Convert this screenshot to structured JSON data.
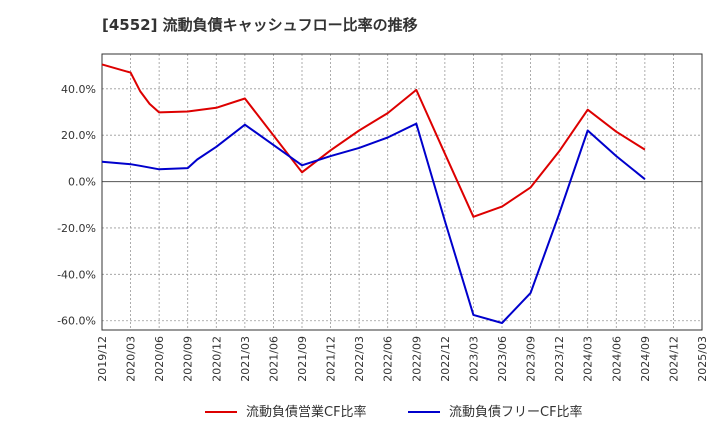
{
  "chart_data": {
    "type": "line",
    "title": "[4552]  流動負債キャッシュフロー比率の推移",
    "xlabel": "",
    "ylabel": "",
    "x_ticks": [
      "2019/12",
      "2020/03",
      "2020/06",
      "2020/09",
      "2020/12",
      "2021/03",
      "2021/06",
      "2021/09",
      "2021/12",
      "2022/03",
      "2022/06",
      "2022/09",
      "2022/12",
      "2023/03",
      "2023/06",
      "2023/09",
      "2023/12",
      "2024/03",
      "2024/06",
      "2024/09",
      "2024/12",
      "2025/03"
    ],
    "y_ticks": [
      "-60.0%",
      "-40.0%",
      "-20.0%",
      "0.0%",
      "20.0%",
      "40.0%"
    ],
    "y_tick_values": [
      -60,
      -40,
      -20,
      0,
      20,
      40
    ],
    "ylim": [
      -64,
      55
    ],
    "grid": true,
    "legend_position": "bottom",
    "series": [
      {
        "name": "流動負債営業CF比率",
        "color": "#dd0000",
        "x": [
          "2019/12",
          "2020/03",
          "2020/04",
          "2020/05",
          "2020/06",
          "2020/09",
          "2020/12",
          "2021/03",
          "2021/09",
          "2021/12",
          "2022/03",
          "2022/06",
          "2022/09",
          "2022/12",
          "2023/03",
          "2023/06",
          "2023/09",
          "2023/12",
          "2024/03",
          "2024/06",
          "2024/09"
        ],
        "values": [
          50.5,
          47.0,
          39.0,
          33.5,
          29.8,
          30.2,
          31.8,
          35.8,
          4.0,
          13.5,
          22.0,
          29.5,
          39.5,
          12.0,
          -15.2,
          -10.8,
          -2.5,
          13.0,
          31.0,
          21.5,
          13.8
        ]
      },
      {
        "name": "流動負債フリーCF比率",
        "color": "#0000cc",
        "x": [
          "2019/12",
          "2020/03",
          "2020/04",
          "2020/06",
          "2020/09",
          "2020/10",
          "2020/12",
          "2021/03",
          "2021/06",
          "2021/09",
          "2021/12",
          "2022/03",
          "2022/06",
          "2022/09",
          "2022/12",
          "2023/03",
          "2023/06",
          "2023/09",
          "2023/12",
          "2024/03",
          "2024/06",
          "2024/09"
        ],
        "values": [
          8.5,
          7.5,
          6.8,
          5.3,
          5.8,
          9.5,
          15.0,
          24.5,
          15.8,
          7.0,
          11.0,
          14.5,
          19.0,
          25.0,
          -17.0,
          -57.5,
          -61.0,
          -48.0,
          -14.0,
          22.0,
          11.0,
          1.0
        ]
      }
    ]
  }
}
